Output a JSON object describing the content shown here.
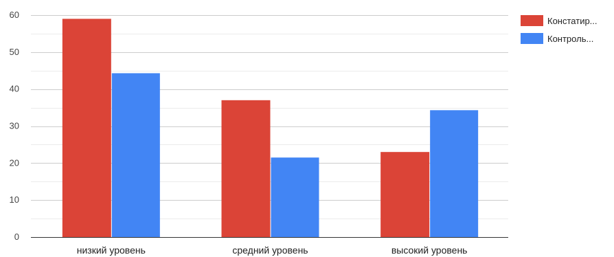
{
  "chart_data": {
    "type": "bar",
    "categories": [
      "низкий уровень",
      "средний уровень",
      "высокий уровень"
    ],
    "series": [
      {
        "name": "Констатир...",
        "color": "#db4437",
        "values": [
          59,
          37,
          23
        ]
      },
      {
        "name": "Контроль...",
        "color": "#4285f4",
        "values": [
          44.3,
          21.5,
          34.3
        ]
      }
    ],
    "ylim": [
      0,
      60
    ],
    "yticks": [
      0,
      10,
      20,
      30,
      40,
      50,
      60
    ],
    "ytick_labels": [
      "0",
      "10",
      "20",
      "30",
      "40",
      "50",
      "60"
    ],
    "minor_grid": true,
    "legend_position": "top-right"
  }
}
